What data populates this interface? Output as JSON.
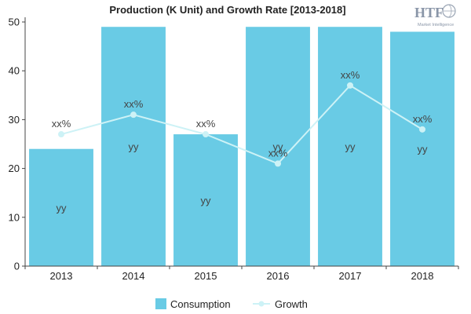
{
  "chart_data": {
    "type": "bar",
    "title": "Production (K Unit) and Growth Rate [2013-2018]",
    "categories": [
      "2013",
      "2014",
      "2015",
      "2016",
      "2017",
      "2018"
    ],
    "series": [
      {
        "name": "Consumption",
        "type": "bar",
        "values": [
          24,
          49,
          27,
          49,
          49,
          48
        ],
        "labels": [
          "yy",
          "yy",
          "yy",
          "yy",
          "yy",
          "yy"
        ],
        "color": "#69CBE5"
      },
      {
        "name": "Growth",
        "type": "line",
        "values": [
          27,
          31,
          27,
          21,
          37,
          28
        ],
        "labels": [
          "xx%",
          "xx%",
          "xx%",
          "xx%",
          "xx%",
          "xx%"
        ],
        "color": "#CDF2F6"
      }
    ],
    "ylim": [
      0,
      50
    ],
    "yticks": [
      0,
      10,
      20,
      30,
      40,
      50
    ],
    "grid": false,
    "legend": "bottom-center"
  },
  "logo": {
    "brand": "HTF",
    "tagline": "Market Intelligence"
  }
}
